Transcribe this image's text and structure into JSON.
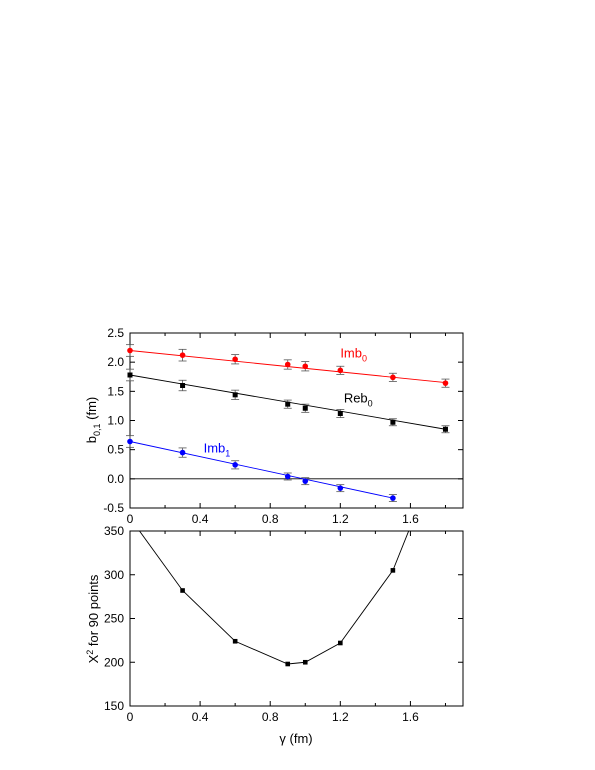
{
  "chart_data": [
    {
      "type": "scatter",
      "xlabel": "",
      "ylabel": "b",
      "ylabel_sub": "0,1",
      "ylabel_unit": " (fm)",
      "xlim": [
        0,
        1.9
      ],
      "ylim": [
        -0.5,
        2.5
      ],
      "xticks": [
        "0",
        "0.4",
        "0.8",
        "1.2",
        "1.6"
      ],
      "yticks": [
        "-0.5",
        "0.0",
        "0.5",
        "1.0",
        "1.5",
        "2.0",
        "2.5"
      ],
      "series": [
        {
          "name": "Imb",
          "name_sub": "0",
          "color": "#ff0000",
          "x": [
            0,
            0.3,
            0.6,
            0.9,
            1.0,
            1.2,
            1.5,
            1.8
          ],
          "y": [
            2.2,
            2.12,
            2.05,
            1.96,
            1.93,
            1.86,
            1.74,
            1.64
          ],
          "err": [
            0.1,
            0.1,
            0.08,
            0.08,
            0.08,
            0.07,
            0.07,
            0.07
          ],
          "fit": [
            2.2,
            1.65
          ]
        },
        {
          "name": "Reb",
          "name_sub": "0",
          "color": "#000000",
          "x": [
            0,
            0.3,
            0.6,
            0.9,
            1.0,
            1.2,
            1.5,
            1.8
          ],
          "y": [
            1.78,
            1.6,
            1.44,
            1.28,
            1.21,
            1.12,
            0.97,
            0.85
          ],
          "err": [
            0.1,
            0.09,
            0.08,
            0.07,
            0.07,
            0.07,
            0.06,
            0.06
          ],
          "fit": [
            1.78,
            0.85
          ]
        },
        {
          "name": "Imb",
          "name_sub": "1",
          "color": "#0000ff",
          "x": [
            0,
            0.3,
            0.6,
            0.9,
            1.0,
            1.2,
            1.5
          ],
          "y": [
            0.64,
            0.45,
            0.24,
            0.04,
            -0.04,
            -0.16,
            -0.33
          ],
          "err": [
            0.1,
            0.08,
            0.07,
            0.06,
            0.06,
            0.06,
            0.06
          ],
          "fit": [
            0.64,
            -0.33
          ],
          "fit_xmax": 1.5
        }
      ]
    },
    {
      "type": "line",
      "xlabel": "γ (fm)",
      "ylabel": "Χ",
      "ylabel_sup": "2",
      "ylabel_rest": " for 90 points",
      "xlim": [
        0,
        1.9
      ],
      "ylim": [
        150,
        350
      ],
      "xticks": [
        "0",
        "0.4",
        "0.8",
        "1.2",
        "1.6"
      ],
      "yticks": [
        "150",
        "200",
        "250",
        "300",
        "350"
      ],
      "x": [
        0.3,
        0.6,
        0.9,
        1.0,
        1.2,
        1.5
      ],
      "y": [
        282,
        224,
        198,
        200,
        222,
        305
      ],
      "curve_x": [
        0.0,
        0.3,
        0.6,
        0.9,
        1.0,
        1.2,
        1.5,
        1.62
      ],
      "curve_y": [
        365,
        282,
        224,
        198,
        200,
        222,
        305,
        365
      ]
    }
  ]
}
